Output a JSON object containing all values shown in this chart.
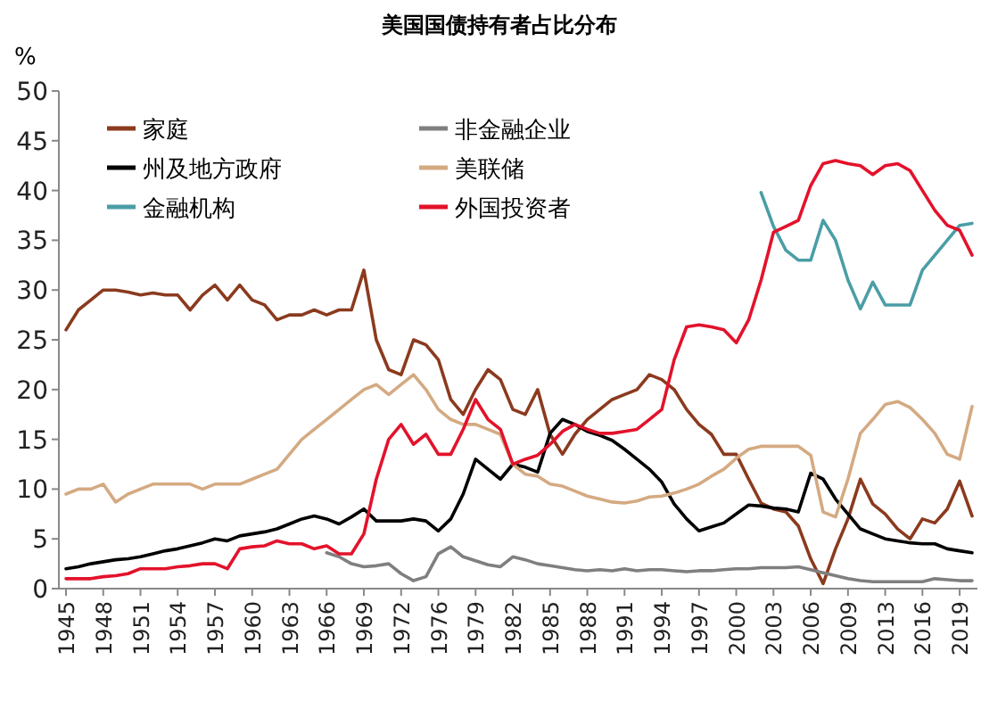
{
  "chart_data": {
    "type": "line",
    "title": "美国国债持有者占比分布",
    "ylabel": "%",
    "categories": [
      "1945",
      null,
      null,
      "1948",
      null,
      null,
      "1951",
      null,
      null,
      "1954",
      null,
      null,
      "1957",
      null,
      null,
      "1960",
      null,
      null,
      "1963",
      null,
      null,
      "1966",
      null,
      null,
      "1969",
      null,
      null,
      "1972",
      null,
      null,
      "1976",
      null,
      null,
      "1979",
      null,
      null,
      "1982",
      null,
      null,
      "1985",
      null,
      null,
      "1988",
      null,
      null,
      "1991",
      null,
      null,
      "1994",
      null,
      null,
      "1997",
      null,
      null,
      "2000",
      null,
      null,
      "2003",
      null,
      null,
      "2006",
      null,
      null,
      "2009",
      null,
      null,
      "2013",
      null,
      null,
      "2016",
      null,
      null,
      "2019",
      null
    ],
    "ylim": [
      0,
      50
    ],
    "yticks": [
      0,
      5,
      10,
      15,
      20,
      25,
      30,
      35,
      40,
      45,
      50
    ],
    "grid": false,
    "legend": "top left",
    "marker": "none",
    "line_style": "solid",
    "series": [
      {
        "name": "家庭",
        "color": "#8b3a1e",
        "values": [
          26,
          28,
          29,
          30,
          30,
          29.8,
          29.5,
          29.7,
          29.5,
          29.5,
          28,
          29.5,
          30.5,
          29,
          30.5,
          29,
          28.5,
          27,
          27.5,
          27.5,
          28,
          27.5,
          28,
          28,
          32,
          25,
          22,
          21.5,
          25,
          24.5,
          23,
          19,
          17.5,
          20,
          22,
          21,
          18,
          17.5,
          20,
          15.5,
          13.5,
          15.5,
          17,
          18,
          19,
          19.5,
          20,
          21.5,
          21,
          20,
          18,
          16.5,
          15.5,
          13.5,
          13.5,
          11,
          8.6,
          8,
          7.7,
          6.3,
          3,
          0.5,
          4,
          7,
          11,
          8.5,
          7.5,
          6,
          5,
          7,
          6.6,
          8,
          10.8,
          7.3
        ]
      },
      {
        "name": "非金融企业",
        "color": "#7f7f7f",
        "values": [
          null,
          null,
          null,
          null,
          null,
          null,
          null,
          null,
          null,
          null,
          null,
          null,
          null,
          null,
          null,
          null,
          null,
          null,
          null,
          null,
          null,
          3.6,
          3.2,
          2.5,
          2.2,
          2.3,
          2.5,
          1.5,
          0.8,
          1.2,
          3.5,
          4.2,
          3.2,
          2.8,
          2.4,
          2.2,
          3.2,
          2.9,
          2.5,
          2.3,
          2.1,
          1.9,
          1.8,
          1.9,
          1.8,
          2,
          1.8,
          1.9,
          1.9,
          1.8,
          1.7,
          1.8,
          1.8,
          1.9,
          2,
          2,
          2.1,
          2.1,
          2.1,
          2.2,
          1.9,
          1.6,
          1.3,
          1,
          0.8,
          0.7,
          0.7,
          0.7,
          0.7,
          0.7,
          1,
          0.9,
          0.8,
          0.8
        ]
      },
      {
        "name": "州及地方政府",
        "color": "#000000",
        "values": [
          2,
          2.2,
          2.5,
          2.7,
          2.9,
          3,
          3.2,
          3.5,
          3.8,
          4,
          4.3,
          4.6,
          5,
          4.8,
          5.3,
          5.5,
          5.7,
          6,
          6.5,
          7,
          7.3,
          7,
          6.5,
          7.2,
          8,
          6.8,
          6.8,
          6.8,
          7,
          6.8,
          5.8,
          7,
          9.5,
          13,
          12,
          11,
          12.5,
          12.2,
          11.7,
          15.6,
          17,
          16.5,
          15.8,
          15.4,
          14.9,
          14,
          13,
          12,
          10.7,
          8.5,
          7,
          5.8,
          6.2,
          6.6,
          7.5,
          8.4,
          8.3,
          8.1,
          8,
          7.7,
          11.6,
          11,
          9,
          7.5,
          6,
          5.5,
          5,
          4.8,
          4.6,
          4.5,
          4.5,
          4,
          3.8,
          3.6
        ]
      },
      {
        "name": "美联储",
        "color": "#d4aa82",
        "values": [
          9.5,
          10,
          10,
          10.5,
          8.7,
          9.5,
          10,
          10.5,
          10.5,
          10.5,
          10.5,
          10,
          10.5,
          10.5,
          10.5,
          11,
          11.5,
          12,
          13.5,
          15,
          16,
          17,
          18,
          19,
          20,
          20.5,
          19.5,
          20.5,
          21.5,
          20,
          18,
          17,
          16.5,
          16.5,
          16,
          15.5,
          12.5,
          11.5,
          11.3,
          10.5,
          10.3,
          9.8,
          9.3,
          9,
          8.7,
          8.6,
          8.8,
          9.2,
          9.3,
          9.6,
          10,
          10.5,
          11.3,
          12,
          13.1,
          14,
          14.3,
          14.3,
          14.3,
          14.3,
          13.4,
          7.7,
          7.2,
          11,
          15.6,
          17,
          18.5,
          18.8,
          18.2,
          17,
          15.6,
          13.5,
          13,
          18.3
        ]
      },
      {
        "name": "金融机构",
        "color": "#4a9ea6",
        "values": [
          null,
          null,
          null,
          null,
          null,
          null,
          null,
          null,
          null,
          null,
          null,
          null,
          null,
          null,
          null,
          null,
          null,
          null,
          null,
          null,
          null,
          null,
          null,
          null,
          null,
          null,
          null,
          null,
          null,
          null,
          null,
          null,
          null,
          null,
          null,
          null,
          null,
          null,
          null,
          null,
          null,
          null,
          null,
          null,
          null,
          null,
          null,
          null,
          null,
          null,
          null,
          null,
          null,
          null,
          null,
          null,
          39.8,
          36.4,
          34,
          33,
          33,
          37,
          35,
          31,
          28.1,
          30.8,
          28.5,
          28.5,
          28.5,
          32,
          33.5,
          35,
          36.5,
          36.7
        ]
      },
      {
        "name": "外国投资者",
        "color": "#e3122b",
        "values": [
          1,
          1,
          1,
          1.2,
          1.3,
          1.5,
          2,
          2,
          2,
          2.2,
          2.3,
          2.5,
          2.5,
          2,
          4,
          4.2,
          4.3,
          4.8,
          4.5,
          4.5,
          4,
          4.3,
          3.5,
          3.5,
          5.5,
          11,
          15,
          16.5,
          14.5,
          15.5,
          13.5,
          13.5,
          16,
          19,
          17,
          16,
          12.5,
          13,
          13.4,
          14.5,
          15.8,
          16.5,
          16,
          15.6,
          15.6,
          15.8,
          16,
          17,
          18,
          23,
          26.3,
          26.5,
          26.3,
          26,
          24.7,
          27,
          31,
          35.8,
          36.4,
          37,
          40.5,
          42.7,
          43,
          42.7,
          42.5,
          41.6,
          42.5,
          42.7,
          42,
          40,
          38,
          36.5,
          36,
          33.5
        ]
      }
    ]
  }
}
